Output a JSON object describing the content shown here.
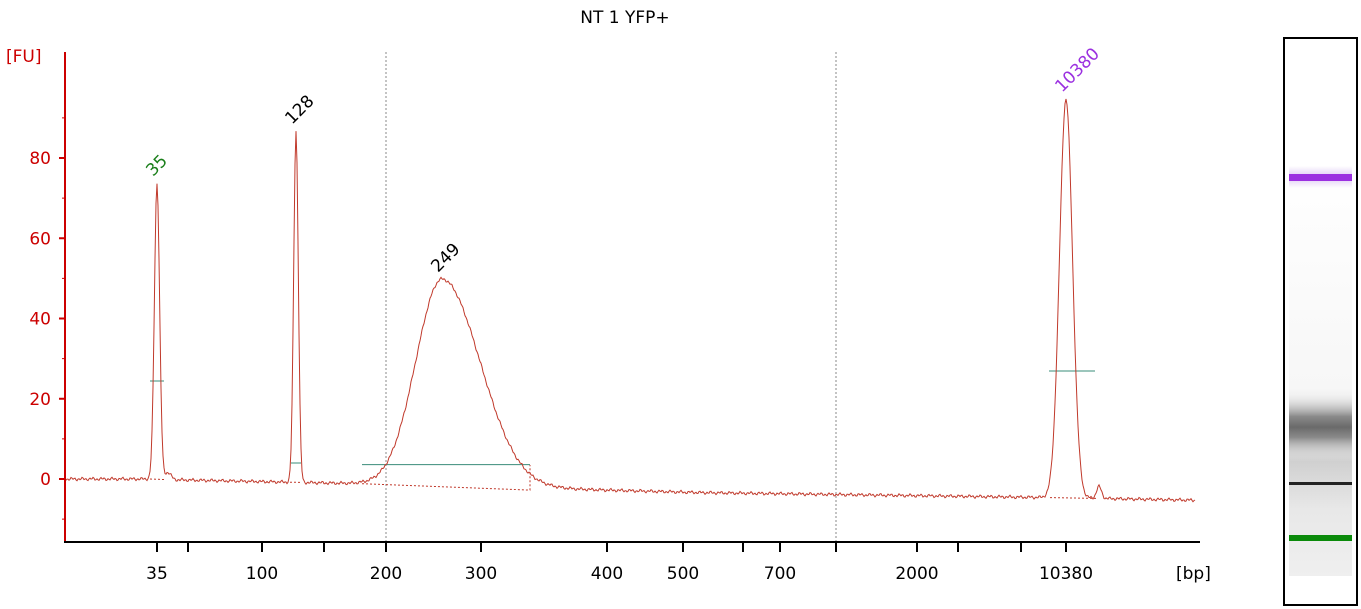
{
  "chart_data": {
    "type": "line",
    "title": "NT 1 YFP+",
    "ylabel": "[FU]",
    "xlabel": "[bp]",
    "ylim": [
      -15,
      105
    ],
    "yticks": [
      0,
      20,
      40,
      60,
      80
    ],
    "xticks": [
      {
        "label": "35"
      },
      {
        "label": ""
      },
      {
        "label": "100"
      },
      {
        "label": ""
      },
      {
        "label": "200"
      },
      {
        "label": "300"
      },
      {
        "label": "400"
      },
      {
        "label": "500"
      },
      {
        "label": ""
      },
      {
        "label": "700"
      },
      {
        "label": ""
      },
      {
        "label": "2000"
      },
      {
        "label": ""
      },
      {
        "label": ""
      },
      {
        "label": "10380"
      }
    ],
    "grid": false,
    "peaks": [
      {
        "label": "35",
        "x_bp": 35,
        "height": 74,
        "color": "#1a7f1a"
      },
      {
        "label": "128",
        "x_bp": 128,
        "height": 87,
        "color": "#000000"
      },
      {
        "label": "249",
        "x_bp": 249,
        "height": 50,
        "color": "#000000"
      },
      {
        "label": "10380",
        "x_bp": 10380,
        "height": 95,
        "color": "#9b30e0"
      }
    ],
    "colors": {
      "trace": "#c0392b",
      "axis": "#cc0000",
      "region": "#3a8c7a",
      "lower_marker": "#1a7f1a",
      "upper_marker": "#9b30e0"
    }
  },
  "gel_lane": {
    "bands": [
      {
        "name": "upper-marker",
        "color": "#9b30e0"
      },
      {
        "name": "sample-smear",
        "color": "#555555"
      },
      {
        "name": "dark-band",
        "color": "#222222"
      },
      {
        "name": "lower-marker",
        "color": "#0a8a0a"
      }
    ]
  }
}
